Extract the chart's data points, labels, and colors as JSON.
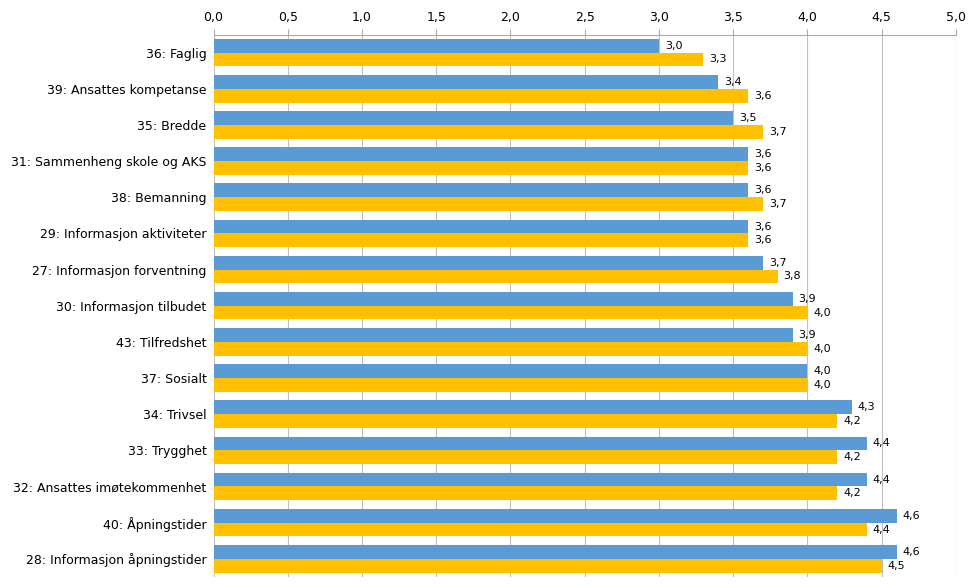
{
  "categories": [
    "36: Faglig",
    "39: Ansattes kompetanse",
    "35: Bredde",
    "31: Sammenheng skole og AKS",
    "38: Bemanning",
    "29: Informasjon aktiviteter",
    "27: Informasjon forventning",
    "30: Informasjon tilbudet",
    "43: Tilfredshet",
    "37: Sosialt",
    "34: Trivsel",
    "33: Trygghet",
    "32: Ansattes imøtekommenhet",
    "40: Åpningstider",
    "28: Informasjon åpningstider"
  ],
  "values_blue": [
    3.0,
    3.4,
    3.5,
    3.6,
    3.6,
    3.6,
    3.7,
    3.9,
    3.9,
    4.0,
    4.3,
    4.4,
    4.4,
    4.6,
    4.6
  ],
  "values_yellow": [
    3.3,
    3.6,
    3.7,
    3.6,
    3.7,
    3.6,
    3.8,
    4.0,
    4.0,
    4.0,
    4.2,
    4.2,
    4.2,
    4.4,
    4.5
  ],
  "color_blue": "#5B9BD5",
  "color_yellow": "#FFC000",
  "xlim": [
    0,
    5.0
  ],
  "xticks": [
    0.0,
    0.5,
    1.0,
    1.5,
    2.0,
    2.5,
    3.0,
    3.5,
    4.0,
    4.5,
    5.0
  ],
  "xtick_labels": [
    "0,0",
    "0,5",
    "1,0",
    "1,5",
    "2,0",
    "2,5",
    "3,0",
    "3,5",
    "4,0",
    "4,5",
    "5,0"
  ],
  "background_color": "#FFFFFF",
  "plot_bg_color": "#FFFFFF",
  "bar_height": 0.38,
  "label_fontsize": 8.0,
  "tick_fontsize": 9,
  "grid_color": "#C0C0C0"
}
